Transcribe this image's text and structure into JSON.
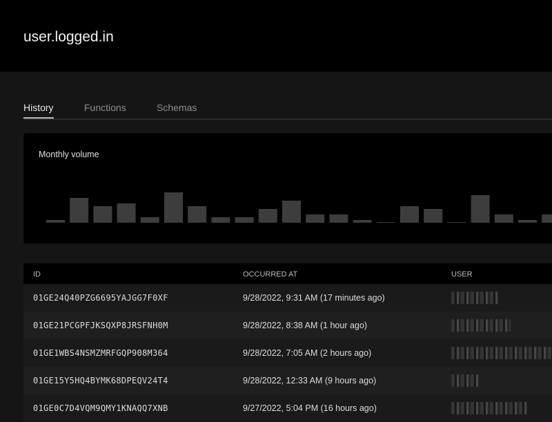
{
  "header": {
    "title": "user.logged.in"
  },
  "tabs": [
    {
      "label": "History",
      "active": true
    },
    {
      "label": "Functions",
      "active": false
    },
    {
      "label": "Schemas",
      "active": false
    }
  ],
  "chart_data": {
    "type": "bar",
    "title": "Monthly volume",
    "values": [
      1,
      9,
      6,
      7,
      2,
      11,
      6,
      2,
      2,
      5,
      8,
      3,
      3,
      1,
      0.25,
      6,
      5,
      0.25,
      10,
      3,
      1,
      3
    ],
    "bar_color": "#3d3d3d",
    "grid": false
  },
  "table": {
    "columns": [
      "ID",
      "OCCURRED AT",
      "USER"
    ],
    "rows": [
      {
        "id": "01GE24Q40PZG6695YAJGG7F0XF",
        "occurred": "9/28/2022, 9:31 AM (17 minutes ago)"
      },
      {
        "id": "01GE21PCGPFJKSQXP8JRSFNH0M",
        "occurred": "9/28/2022, 8:38 AM (1 hour ago)"
      },
      {
        "id": "01GE1WBS4NSMZMRFGQP908M364",
        "occurred": "9/28/2022, 7:05 AM (2 hours ago)"
      },
      {
        "id": "01GE15Y5HQ4BYMK68DPEQV24T4",
        "occurred": "9/28/2022, 12:33 AM (9 hours ago)"
      },
      {
        "id": "01GE0C7D4VQM9QMY1KNAQQ7XNB",
        "occurred": "9/27/2022, 5:04 PM (16 hours ago)"
      }
    ]
  }
}
